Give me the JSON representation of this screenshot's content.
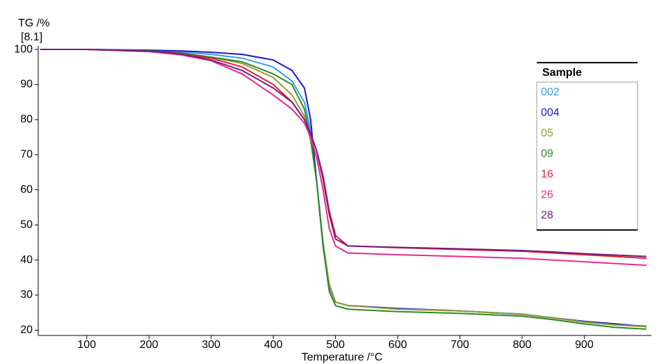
{
  "chart_data": {
    "type": "line",
    "y_label_line1": "TG /%",
    "y_label_line2": "[8.1]",
    "x_label": "Temperature /°C",
    "legend_title": "Sample",
    "legend": "upper right",
    "x": [
      25,
      100,
      200,
      250,
      300,
      350,
      400,
      430,
      450,
      460,
      470,
      480,
      490,
      500,
      520,
      600,
      700,
      800,
      850,
      900,
      950,
      1000
    ],
    "series": [
      {
        "name": "002",
        "color": "#3a9cf0",
        "values": [
          100,
          100,
          99.7,
          99.3,
          98.6,
          97.5,
          95,
          91,
          85,
          77,
          62,
          44,
          32,
          28,
          27,
          26.2,
          25.5,
          24.6,
          23.5,
          22.3,
          21.5,
          21.2
        ]
      },
      {
        "name": "004",
        "color": "#1a1ad0",
        "values": [
          100,
          100,
          99.8,
          99.6,
          99.2,
          98.6,
          97,
          94,
          89,
          80,
          62,
          44,
          33,
          28,
          27,
          26.2,
          25.5,
          24.5,
          23.5,
          22.5,
          21.8,
          21
        ]
      },
      {
        "name": "05",
        "color": "#9a9a30",
        "values": [
          100,
          100,
          99.6,
          99,
          97.8,
          96,
          92,
          87,
          81,
          74,
          62,
          45,
          33,
          28,
          27,
          26,
          25.5,
          24.5,
          23.5,
          22.3,
          21.5,
          21
        ]
      },
      {
        "name": "09",
        "color": "#2a8a2a",
        "values": [
          100,
          100,
          99.6,
          99,
          97.8,
          96.5,
          93,
          90,
          83,
          75,
          62,
          44,
          31,
          27,
          26,
          25.3,
          24.8,
          24,
          23,
          21.8,
          20.8,
          20.3
        ]
      },
      {
        "name": "16",
        "color": "#e0202e",
        "values": [
          100,
          100,
          99.5,
          98.8,
          97.5,
          95,
          90,
          85,
          80,
          76,
          71,
          64,
          54,
          47,
          44,
          43.5,
          43,
          42.5,
          42,
          41.5,
          41,
          40.5
        ]
      },
      {
        "name": "26",
        "color": "#e8288c",
        "values": [
          100,
          100,
          99.4,
          98.5,
          96.8,
          93,
          87,
          83,
          79,
          75,
          69,
          60,
          49,
          44,
          42,
          41.5,
          41,
          40.5,
          40,
          39.5,
          39,
          38.5
        ]
      },
      {
        "name": "28",
        "color": "#7a1a80",
        "values": [
          100,
          100,
          99.5,
          98.8,
          97,
          94,
          89,
          85,
          80,
          76,
          71,
          63,
          53,
          46,
          44,
          43.6,
          43.2,
          42.7,
          42.3,
          41.8,
          41.4,
          41
        ]
      }
    ],
    "xlim": [
      22,
      1008
    ],
    "ylim": [
      18.5,
      101
    ],
    "xticks": [
      100,
      200,
      300,
      400,
      500,
      600,
      700,
      800,
      900
    ],
    "yticks": [
      20,
      30,
      40,
      50,
      60,
      70,
      80,
      90,
      100
    ]
  }
}
